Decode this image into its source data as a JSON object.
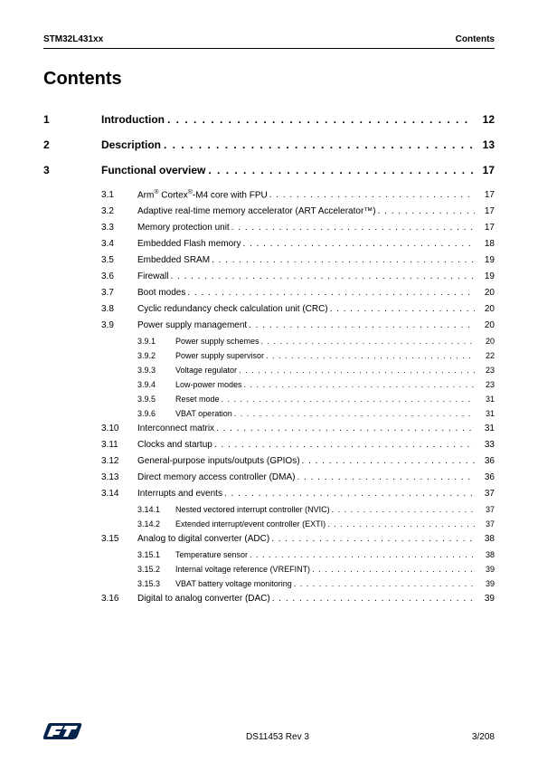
{
  "header": {
    "left": "STM32L431xx",
    "right": "Contents"
  },
  "title": "Contents",
  "colors": {
    "text": "#000000",
    "bg": "#ffffff",
    "logo_blue": "#03234b",
    "rule": "#000000"
  },
  "footer": {
    "center": "DS11453 Rev 3",
    "right": "3/208"
  },
  "toc": [
    {
      "level": 1,
      "num": "1",
      "label": "Introduction",
      "page": "12"
    },
    {
      "level": 1,
      "num": "2",
      "label": "Description",
      "page": "13"
    },
    {
      "level": 1,
      "num": "3",
      "label": "Functional overview",
      "page": "17"
    },
    {
      "level": 2,
      "num": "3.1",
      "label_html": "Arm<span class='sup'>®</span> Cortex<span class='sup'>®</span>-M4 core with FPU",
      "page": "17"
    },
    {
      "level": 2,
      "num": "3.2",
      "label": "Adaptive real-time memory accelerator (ART Accelerator™)",
      "page": "17"
    },
    {
      "level": 2,
      "num": "3.3",
      "label": "Memory protection unit",
      "page": "17"
    },
    {
      "level": 2,
      "num": "3.4",
      "label": "Embedded Flash memory",
      "page": "18"
    },
    {
      "level": 2,
      "num": "3.5",
      "label": "Embedded SRAM",
      "page": "19"
    },
    {
      "level": 2,
      "num": "3.6",
      "label": "Firewall",
      "page": "19"
    },
    {
      "level": 2,
      "num": "3.7",
      "label": "Boot modes",
      "page": "20"
    },
    {
      "level": 2,
      "num": "3.8",
      "label": "Cyclic redundancy check calculation unit (CRC)",
      "page": "20"
    },
    {
      "level": 2,
      "num": "3.9",
      "label": "Power supply management",
      "page": "20"
    },
    {
      "level": 3,
      "num": "3.9.1",
      "label": "Power supply schemes",
      "page": "20"
    },
    {
      "level": 3,
      "num": "3.9.2",
      "label": "Power supply supervisor",
      "page": "22"
    },
    {
      "level": 3,
      "num": "3.9.3",
      "label": "Voltage regulator",
      "page": "23"
    },
    {
      "level": 3,
      "num": "3.9.4",
      "label": "Low-power modes",
      "page": "23"
    },
    {
      "level": 3,
      "num": "3.9.5",
      "label": "Reset mode",
      "page": "31"
    },
    {
      "level": 3,
      "num": "3.9.6",
      "label": "VBAT operation",
      "page": "31"
    },
    {
      "level": 2,
      "num": "3.10",
      "label": "Interconnect matrix",
      "page": "31"
    },
    {
      "level": 2,
      "num": "3.11",
      "label": "Clocks and startup",
      "page": "33"
    },
    {
      "level": 2,
      "num": "3.12",
      "label": "General-purpose inputs/outputs (GPIOs)",
      "page": "36"
    },
    {
      "level": 2,
      "num": "3.13",
      "label": "Direct memory access controller (DMA)",
      "page": "36"
    },
    {
      "level": 2,
      "num": "3.14",
      "label": "Interrupts and events",
      "page": "37"
    },
    {
      "level": 3,
      "num": "3.14.1",
      "label": "Nested vectored interrupt controller (NVIC)",
      "page": "37"
    },
    {
      "level": 3,
      "num": "3.14.2",
      "label": "Extended interrupt/event controller (EXTI)",
      "page": "37"
    },
    {
      "level": 2,
      "num": "3.15",
      "label": "Analog to digital converter (ADC)",
      "page": "38"
    },
    {
      "level": 3,
      "num": "3.15.1",
      "label": "Temperature sensor",
      "page": "38"
    },
    {
      "level": 3,
      "num": "3.15.2",
      "label": "Internal voltage reference (VREFINT)",
      "page": "39"
    },
    {
      "level": 3,
      "num": "3.15.3",
      "label": "VBAT battery voltage monitoring",
      "page": "39"
    },
    {
      "level": 2,
      "num": "3.16",
      "label": "Digital to analog converter (DAC)",
      "page": "39"
    }
  ]
}
